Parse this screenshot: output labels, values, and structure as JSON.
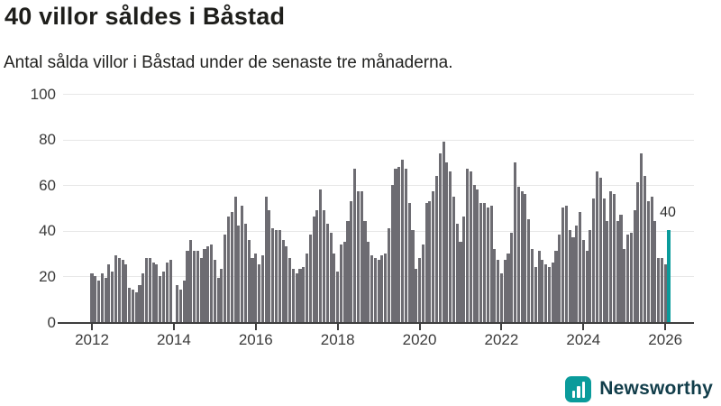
{
  "chart_data": {
    "type": "bar",
    "title": "40 villor såldes i Båstad",
    "subtitle": "Antal sålda villor i Båstad under de senaste tre månaderna.",
    "frequency": "monthly",
    "x_start": "2012-01",
    "x_end": "2026-02",
    "series": [
      21,
      20,
      18,
      21,
      19,
      25,
      22,
      29,
      28,
      27,
      25,
      15,
      14,
      13,
      16,
      21,
      28,
      28,
      26,
      25,
      20,
      22,
      26,
      27,
      0,
      16,
      14,
      18,
      31,
      36,
      31,
      31,
      28,
      32,
      33,
      34,
      27,
      19,
      23,
      38,
      46,
      48,
      55,
      42,
      51,
      43,
      36,
      28,
      30,
      25,
      29,
      55,
      49,
      41,
      40,
      40,
      36,
      33,
      28,
      23,
      21,
      23,
      24,
      30,
      38,
      46,
      49,
      58,
      49,
      43,
      39,
      30,
      22,
      34,
      35,
      44,
      53,
      67,
      57,
      57,
      44,
      35,
      29,
      28,
      27,
      29,
      30,
      41,
      60,
      67,
      68,
      71,
      67,
      52,
      40,
      23,
      28,
      34,
      52,
      53,
      57,
      64,
      74,
      79,
      70,
      66,
      55,
      43,
      35,
      46,
      67,
      66,
      60,
      58,
      52,
      52,
      50,
      51,
      32,
      27,
      21,
      27,
      30,
      39,
      70,
      59,
      57,
      56,
      45,
      32,
      24,
      31,
      27,
      25,
      24,
      26,
      31,
      38,
      50,
      51,
      40,
      37,
      42,
      48,
      36,
      31,
      40,
      54,
      66,
      63,
      54,
      44,
      57,
      56,
      44,
      47,
      32,
      38,
      39,
      49,
      61,
      74,
      64,
      53,
      55,
      44,
      28,
      28,
      25,
      40
    ],
    "ylim": [
      0,
      100
    ],
    "y_ticks": [
      0,
      20,
      40,
      60,
      80,
      100
    ],
    "x_tick_years": [
      2012,
      2014,
      2016,
      2018,
      2020,
      2022,
      2024,
      2026
    ],
    "grid": "horizontal",
    "legend": "none",
    "bar_color": "#6d6c72",
    "highlight_color": "#0a9b9b",
    "highlight_position": "last",
    "highlight_value": 40,
    "annotation_label": "40"
  },
  "footer": {
    "brand": "Newsworthy"
  }
}
